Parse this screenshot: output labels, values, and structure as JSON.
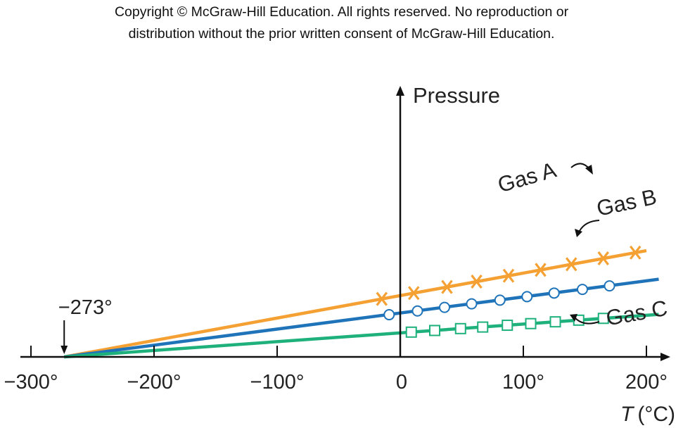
{
  "copyright": {
    "line1": "Copyright © McGraw-Hill Education.  All rights reserved. No reproduction or",
    "line2": "distribution without the prior written consent of McGraw-Hill Education."
  },
  "chart_data": {
    "type": "line",
    "ylabel": "Pressure",
    "xlabel_italic": "T",
    "xlabel_unit": "(°C)",
    "xlim": [
      -300,
      200
    ],
    "x_ticks": [
      {
        "value": -300,
        "label": "−300°"
      },
      {
        "value": -200,
        "label": "−200°"
      },
      {
        "value": -100,
        "label": "−100°"
      },
      {
        "value": 0,
        "label": "0"
      },
      {
        "value": 100,
        "label": "100°"
      },
      {
        "value": 200,
        "label": "200°"
      }
    ],
    "annotation": {
      "label": "−273°",
      "x": -273
    },
    "series": [
      {
        "name": "Gas A",
        "color": "#f5a033",
        "marker": "x",
        "line": [
          [
            -273,
            0
          ],
          [
            200,
            1.36
          ]
        ],
        "points": [
          [
            -15,
            0.742
          ],
          [
            11,
            0.817
          ],
          [
            38,
            0.895
          ],
          [
            62,
            0.964
          ],
          [
            88,
            1.039
          ],
          [
            114,
            1.114
          ],
          [
            139,
            1.186
          ],
          [
            165,
            1.261
          ],
          [
            191,
            1.335
          ]
        ]
      },
      {
        "name": "Gas B",
        "color": "#1f74b9",
        "marker": "circle",
        "line": [
          [
            -273,
            0
          ],
          [
            210,
            0.994
          ]
        ],
        "points": [
          [
            -9,
            0.54
          ],
          [
            14,
            0.588
          ],
          [
            36,
            0.634
          ],
          [
            58,
            0.679
          ],
          [
            81,
            0.726
          ],
          [
            103,
            0.771
          ],
          [
            125,
            0.817
          ],
          [
            148,
            0.864
          ],
          [
            170,
            0.909
          ]
        ]
      },
      {
        "name": "Gas C",
        "color": "#1fb17c",
        "marker": "square",
        "line": [
          [
            -273,
            0
          ],
          [
            210,
            0.544
          ]
        ],
        "points": [
          [
            9,
            0.317
          ],
          [
            28,
            0.338
          ],
          [
            49,
            0.362
          ],
          [
            67,
            0.382
          ],
          [
            87,
            0.405
          ],
          [
            106,
            0.426
          ],
          [
            126,
            0.449
          ],
          [
            145,
            0.47
          ],
          [
            165,
            0.493
          ]
        ]
      }
    ]
  }
}
